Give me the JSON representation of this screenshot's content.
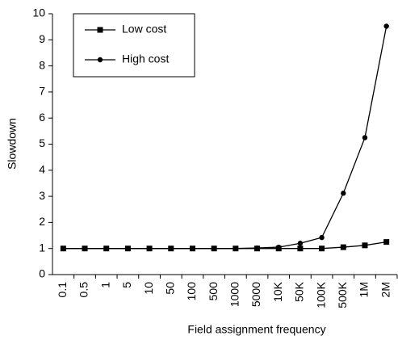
{
  "chart_data": {
    "type": "line",
    "x_label": "Field assignment frequency",
    "y_label": "Slowdown",
    "categories": [
      "0.1",
      "0.5",
      "1",
      "5",
      "10",
      "50",
      "100",
      "500",
      "1000",
      "5000",
      "10K",
      "50K",
      "100K",
      "500K",
      "1M",
      "2M"
    ],
    "series": [
      {
        "name": "Low cost",
        "color": "#000000",
        "marker": "square",
        "values": [
          1,
          1,
          1,
          1,
          1,
          1,
          1,
          1,
          1,
          1,
          1,
          1,
          1,
          1.05,
          1.12,
          1.25
        ]
      },
      {
        "name": "High cost",
        "color": "#000000",
        "marker": "circle",
        "values": [
          1,
          1,
          1,
          1,
          1,
          1,
          1,
          1,
          1,
          1.02,
          1.05,
          1.2,
          1.42,
          3.12,
          5.25,
          9.52
        ]
      }
    ],
    "ylim": [
      0,
      10
    ],
    "yticks": [
      0,
      1,
      2,
      3,
      4,
      5,
      6,
      7,
      8,
      9,
      10
    ],
    "legend": "upper-left"
  }
}
